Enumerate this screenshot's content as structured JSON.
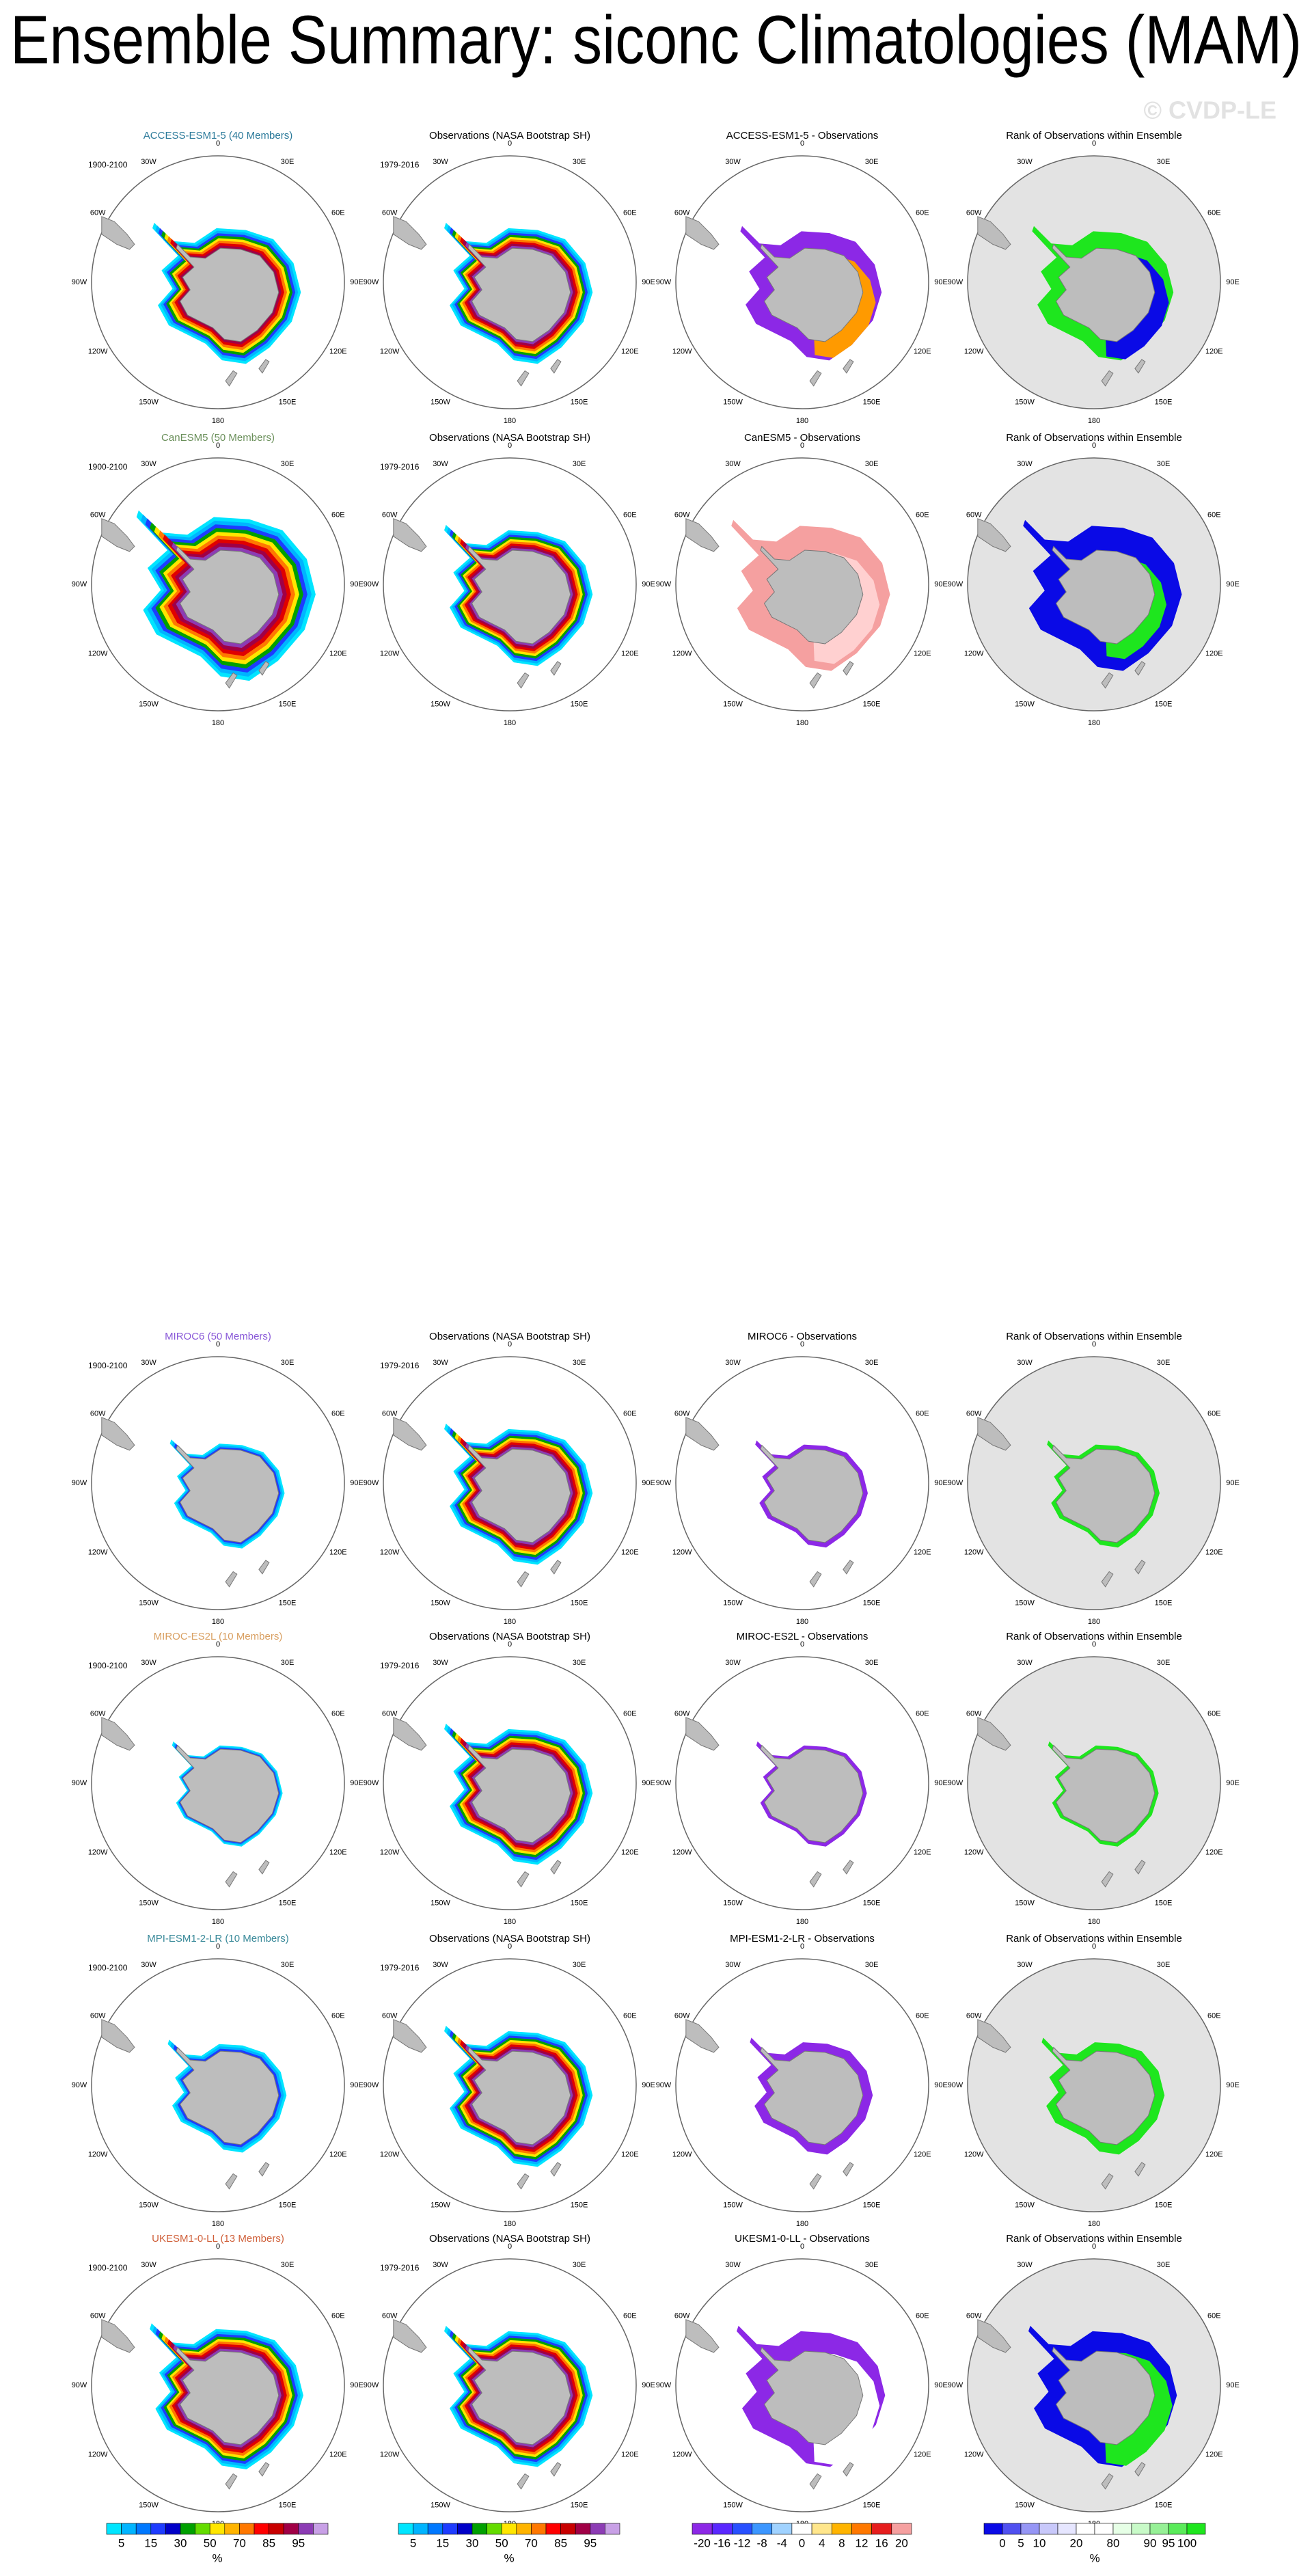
{
  "title": "Ensemble Summary: siconc Climatologies (MAM)",
  "watermark": "© CVDP-LE",
  "longitude_labels": [
    "0",
    "30E",
    "60E",
    "90E",
    "120E",
    "150E",
    "180",
    "150W",
    "120W",
    "90W",
    "60W",
    "30W"
  ],
  "rows": [
    {
      "panels": [
        {
          "title": "ACCESS-ESM1-5 (40 Members)",
          "title_color": "#2b7a9a",
          "period": "1900-2100"
        },
        {
          "title": "Observations (NASA Bootstrap SH)",
          "period": "1979-2016"
        },
        {
          "title": "ACCESS-ESM1-5 - Observations"
        },
        {
          "title": "Rank of Observations within Ensemble"
        }
      ]
    },
    {
      "panels": [
        {
          "title": "CanESM5 (50 Members)",
          "title_color": "#6a8f5a",
          "period": "1900-2100"
        },
        {
          "title": "Observations (NASA Bootstrap SH)",
          "period": "1979-2016"
        },
        {
          "title": "CanESM5 - Observations"
        },
        {
          "title": "Rank of Observations within Ensemble"
        }
      ]
    },
    {
      "panels": [
        {
          "title": "MIROC6 (50 Members)",
          "title_color": "#8a5ad8",
          "period": "1900-2100"
        },
        {
          "title": "Observations (NASA Bootstrap SH)",
          "period": "1979-2016"
        },
        {
          "title": "MIROC6 - Observations"
        },
        {
          "title": "Rank of Observations within Ensemble"
        }
      ]
    },
    {
      "panels": [
        {
          "title": "MIROC-ES2L (10 Members)",
          "title_color": "#d9a062",
          "period": "1900-2100"
        },
        {
          "title": "Observations (NASA Bootstrap SH)",
          "period": "1979-2016"
        },
        {
          "title": "MIROC-ES2L - Observations"
        },
        {
          "title": "Rank of Observations within Ensemble"
        }
      ]
    },
    {
      "panels": [
        {
          "title": "MPI-ESM1-2-LR (10 Members)",
          "title_color": "#3a8a9a",
          "period": "1900-2100"
        },
        {
          "title": "Observations (NASA Bootstrap SH)",
          "period": "1979-2016"
        },
        {
          "title": "MPI-ESM1-2-LR - Observations"
        },
        {
          "title": "Rank of Observations within Ensemble"
        }
      ]
    },
    {
      "panels": [
        {
          "title": "UKESM1-0-LL (13 Members)",
          "title_color": "#d0603a",
          "period": "1900-2100"
        },
        {
          "title": "Observations (NASA Bootstrap SH)",
          "period": "1979-2016"
        },
        {
          "title": "UKESM1-0-LL - Observations"
        },
        {
          "title": "Rank of Observations within Ensemble"
        }
      ]
    }
  ],
  "colorbars": [
    {
      "ticks": [
        5,
        15,
        30,
        50,
        70,
        85,
        95
      ],
      "unit": "%",
      "colors": [
        "#00e5ff",
        "#00b4ff",
        "#0078ff",
        "#1e3cff",
        "#0000c8",
        "#00a000",
        "#64dc00",
        "#ffe600",
        "#ffb400",
        "#ff7800",
        "#ff0000",
        "#c80000",
        "#a00046",
        "#8c3cb4",
        "#c8a0e6"
      ]
    },
    {
      "ticks": [
        5,
        15,
        30,
        50,
        70,
        85,
        95
      ],
      "unit": "%",
      "colors": [
        "#00e5ff",
        "#00b4ff",
        "#0078ff",
        "#1e3cff",
        "#0000c8",
        "#00a000",
        "#64dc00",
        "#ffe600",
        "#ffb400",
        "#ff7800",
        "#ff0000",
        "#c80000",
        "#a00046",
        "#8c3cb4",
        "#c8a0e6"
      ]
    },
    {
      "ticks": [
        -20,
        -16,
        -12,
        -8,
        -4,
        0,
        4,
        8,
        12,
        16,
        20
      ],
      "colors": [
        "#8c28e6",
        "#5a28ff",
        "#2850ff",
        "#3c96ff",
        "#a0d2ff",
        "#ffffff",
        "#ffe68c",
        "#ffb400",
        "#ff7800",
        "#e61e1e",
        "#f5a0a0"
      ]
    },
    {
      "ticks": [
        0,
        5,
        10,
        20,
        80,
        90,
        95,
        100
      ],
      "unit": "%",
      "colors": [
        "#0a0ae6",
        "#5050f0",
        "#9696f5",
        "#c8c8fa",
        "#e6e6ff",
        "#ffffff",
        "#ffffff",
        "#e6ffe6",
        "#c8fac8",
        "#96f096",
        "#5aeb5a",
        "#1ee61e"
      ]
    }
  ]
}
